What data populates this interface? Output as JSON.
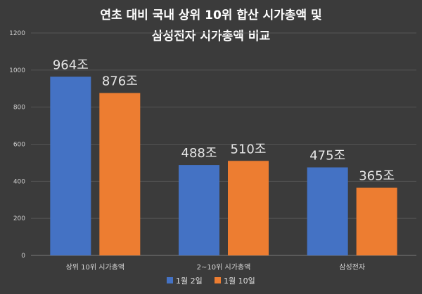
{
  "chart_data": {
    "type": "bar",
    "title_lines": [
      "연초 대비 국내 상위 10위 합산 시가총액 및",
      "삼성전자 시가총액 비교"
    ],
    "categories": [
      "상위 10위 시가총액",
      "2~10위 시가총액",
      "삼성전자"
    ],
    "series": [
      {
        "name": "1월 2일",
        "values": [
          964,
          488,
          475
        ],
        "labels": [
          "964조",
          "488조",
          "475조"
        ],
        "color": "#4472c4"
      },
      {
        "name": "1월 10일",
        "values": [
          876,
          510,
          365
        ],
        "labels": [
          "876조",
          "510조",
          "365조"
        ],
        "color": "#ed7d31"
      }
    ],
    "ylim": [
      0,
      1200
    ],
    "yticks": [
      "0",
      "200",
      "400",
      "600",
      "800",
      "1000",
      "1200"
    ],
    "grid": true,
    "legend_position": "bottom"
  },
  "colors": {
    "background": "#3b3b3b"
  }
}
